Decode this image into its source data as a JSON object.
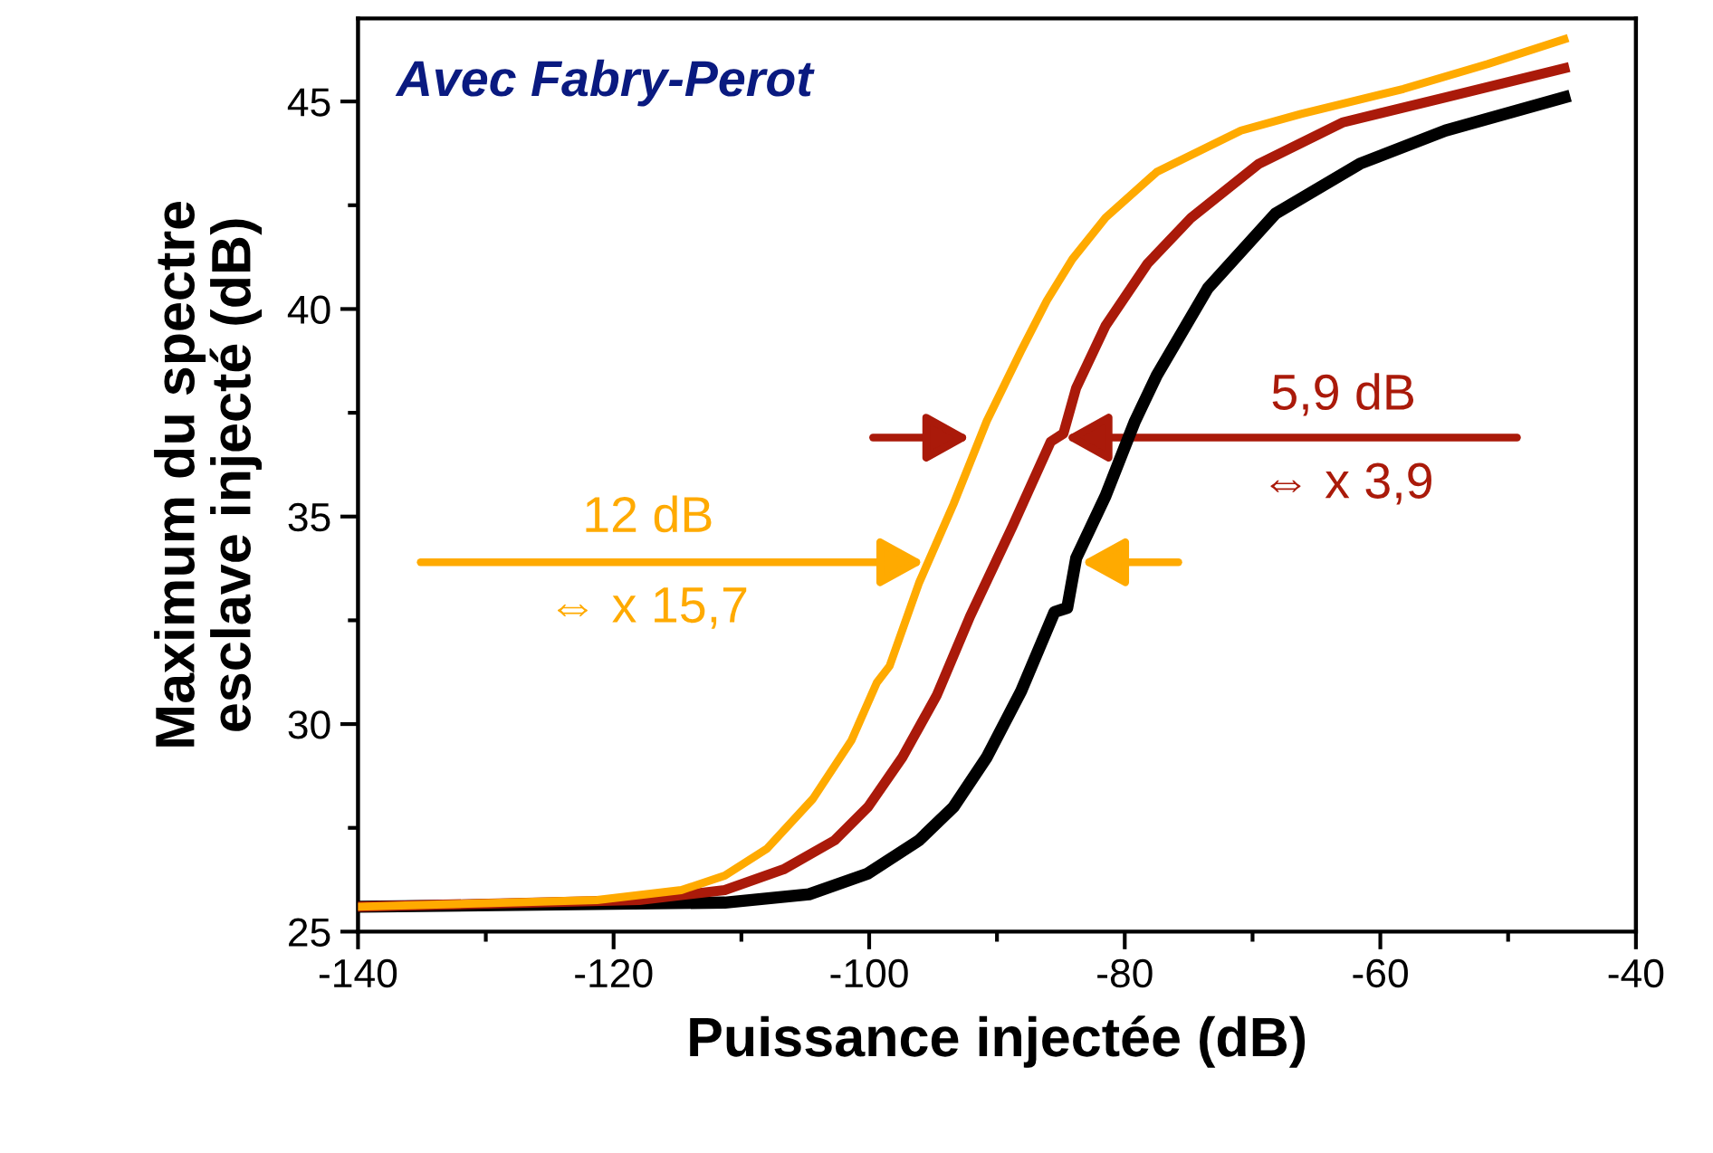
{
  "chart_data": {
    "type": "line",
    "title": "Avec Fabry-Perot",
    "xlabel": "Puissance injectée (dB)",
    "ylabel": "Maximum du spectre\nesclave injecté (dB)",
    "xlim": [
      -140,
      -40
    ],
    "xticks": [
      -140,
      -120,
      -100,
      -80,
      -60,
      -40
    ],
    "ylim": [
      25,
      47
    ],
    "yticks": [
      25,
      30,
      35,
      40,
      45
    ],
    "grid": false,
    "legend": false,
    "marker": "none",
    "line_style": "solid",
    "series": [
      {
        "color": "#ffaa00",
        "x": [
          -140,
          -121.3,
          -114.7,
          -111.3,
          -108,
          -104.4,
          -101.4,
          -99.4,
          -98.4,
          -96.1,
          -93.4,
          -90.8,
          -88.1,
          -86.1,
          -84.1,
          -81.5,
          -77.5,
          -70.9,
          -66.2,
          -58.2,
          -51.6,
          -45.6
        ],
        "values": [
          25.6,
          25.76,
          26.0,
          26.35,
          27.0,
          28.2,
          29.6,
          31.0,
          31.4,
          33.4,
          35.3,
          37.3,
          39.0,
          40.2,
          41.2,
          42.2,
          43.3,
          44.3,
          44.7,
          45.3,
          45.9,
          46.5
        ]
      },
      {
        "color": "#aa1a0a",
        "x": [
          -140,
          -118,
          -111.3,
          -106.7,
          -102.7,
          -100.1,
          -97.4,
          -94.7,
          -92.1,
          -88.8,
          -85.8,
          -84.8,
          -83.8,
          -81.5,
          -78.2,
          -74.8,
          -69.5,
          -62.9,
          -54.9,
          -45.6
        ],
        "values": [
          25.6,
          25.76,
          26.0,
          26.5,
          27.2,
          28.0,
          29.2,
          30.7,
          32.6,
          34.75,
          36.8,
          37.0,
          38.1,
          39.6,
          41.1,
          42.2,
          43.5,
          44.5,
          45.1,
          45.8
        ]
      },
      {
        "color": "#000000",
        "x": [
          -140,
          -111.3,
          -104.7,
          -100.1,
          -96.1,
          -93.4,
          -90.8,
          -88.1,
          -85.5,
          -84.5,
          -83.8,
          -81.5,
          -79.2,
          -77.5,
          -73.5,
          -68.2,
          -61.6,
          -54.9,
          -45.6
        ],
        "values": [
          25.6,
          25.7,
          25.9,
          26.4,
          27.2,
          28.0,
          29.2,
          30.8,
          32.7,
          32.8,
          34.0,
          35.5,
          37.3,
          38.4,
          40.5,
          42.3,
          43.5,
          44.3,
          45.1
        ]
      }
    ],
    "annotations": [
      "12 dB",
      "⇔ x 15,7",
      "5,9 dB",
      "⇔ x 3,9"
    ]
  }
}
